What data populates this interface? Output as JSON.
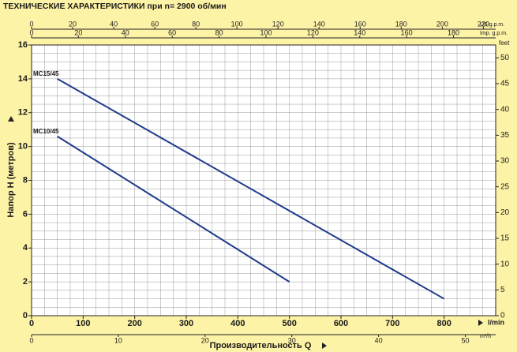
{
  "chart_data": {
    "type": "line",
    "title": "ТЕХНИЧЕСКИЕ ХАРАКТЕРИСТИКИ при n= 2900 об/мин",
    "x_label": "Производительность Q",
    "x_unit": "l/min",
    "y_label": "Напор H (метров)",
    "y2_label": "feet",
    "xlim": [
      0,
      900
    ],
    "xticks": [
      0,
      100,
      200,
      300,
      400,
      500,
      600,
      700,
      800
    ],
    "ylim": [
      0,
      16
    ],
    "yticks": [
      0,
      2,
      4,
      6,
      8,
      10,
      12,
      14,
      16
    ],
    "y2lim": [
      0,
      52.5
    ],
    "y2ticks": [
      0,
      5,
      10,
      15,
      20,
      25,
      30,
      35,
      40,
      45,
      50
    ],
    "x_minor_step": 25,
    "y_minor_step": 0.5,
    "grid": true,
    "secondary_x": [
      {
        "label": "m³/h",
        "position": "bottom",
        "lim": [
          0,
          53.5
        ],
        "ticks": [
          0,
          10,
          20,
          30,
          40,
          50
        ]
      },
      {
        "label": "US g.p.m.",
        "position": "top",
        "lim": [
          0,
          226
        ],
        "ticks": [
          0,
          20,
          40,
          60,
          80,
          100,
          120,
          140,
          160,
          180,
          200,
          220
        ]
      },
      {
        "label": "Imp. g.p.m.",
        "position": "top",
        "lim": [
          0,
          198
        ],
        "ticks": [
          0,
          20,
          40,
          60,
          80,
          100,
          120,
          140,
          160,
          180
        ]
      }
    ],
    "series": [
      {
        "name": "MC15/45",
        "color": "#1f3c8c",
        "x": [
          50,
          800
        ],
        "values": [
          14,
          1
        ]
      },
      {
        "name": "MC10/45",
        "color": "#1f3c8c",
        "x": [
          50,
          500
        ],
        "values": [
          10.6,
          2
        ]
      }
    ]
  }
}
